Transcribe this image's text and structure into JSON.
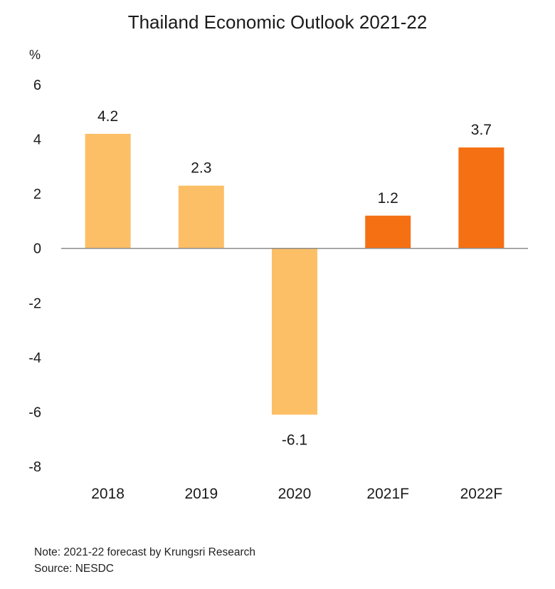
{
  "chart_data": {
    "type": "bar",
    "title": "Thailand Economic Outlook 2021-22",
    "ylabel": "%",
    "xlabel": "",
    "categories": [
      "2018",
      "2019",
      "2020",
      "2021F",
      "2022F"
    ],
    "values": [
      4.2,
      2.3,
      -6.1,
      1.2,
      3.7
    ],
    "value_labels": [
      "4.2",
      "2.3",
      "-6.1",
      "1.2",
      "3.7"
    ],
    "forecast": [
      false,
      false,
      false,
      true,
      true
    ],
    "ylim": [
      -8,
      6
    ],
    "yticks": [
      6,
      4,
      2,
      0,
      -2,
      -4,
      -6,
      -8
    ],
    "grid": false,
    "legend": "none",
    "colors": {
      "actual": "#FCBF66",
      "forecast": "#F57013",
      "axis": "#8c8c8c",
      "text": "#1a1a1a"
    }
  },
  "notes": {
    "note": "Note: 2021-22 forecast by Krungsri Research",
    "source": "Source: NESDC"
  }
}
